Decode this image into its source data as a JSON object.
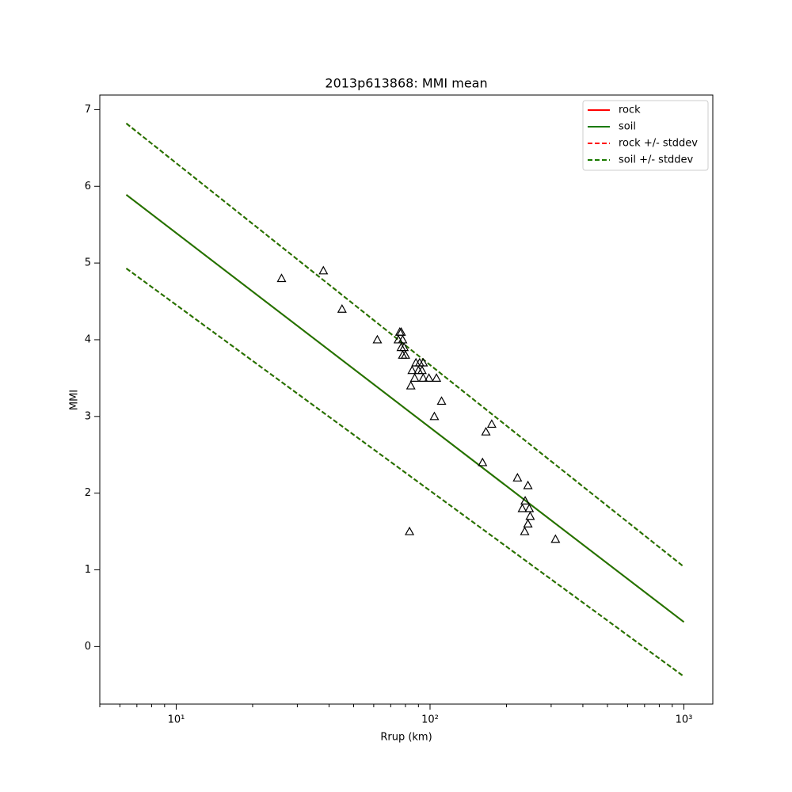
{
  "chart_data": {
    "type": "line",
    "title": "2013p613868: MMI mean",
    "xlabel": "Rrup (km)",
    "ylabel": "MMI",
    "xscale": "log",
    "xlim": [
      5,
      1300
    ],
    "ylim": [
      -0.75,
      7.19
    ],
    "xticks": [
      {
        "value": 10,
        "label": "10¹"
      },
      {
        "value": 100,
        "label": "10²"
      },
      {
        "value": 1000,
        "label": "10³"
      }
    ],
    "xminorticks": [
      5,
      6,
      7,
      8,
      9,
      20,
      30,
      40,
      50,
      60,
      70,
      80,
      90,
      200,
      300,
      400,
      500,
      600,
      700,
      800,
      900
    ],
    "yticks": [
      0,
      1,
      2,
      3,
      4,
      5,
      6,
      7
    ],
    "legend": "upper right",
    "series": [
      {
        "name": "rock",
        "color": "#ff0000",
        "linestyle": "solid",
        "x": [
          6.36,
          1000
        ],
        "values": [
          5.89,
          0.32
        ]
      },
      {
        "name": "soil",
        "color": "#1a7a00",
        "linestyle": "solid",
        "x": [
          6.36,
          1000
        ],
        "values": [
          5.89,
          0.32
        ]
      },
      {
        "name": "rock +/- stddev",
        "color": "#ff0000",
        "linestyle": "dashed",
        "x": [
          6.36,
          1000,
          null,
          6.36,
          1000
        ],
        "values": [
          6.82,
          1.04,
          null,
          4.93,
          -0.39
        ]
      },
      {
        "name": "soil +/- stddev",
        "color": "#1a7a00",
        "linestyle": "dashed",
        "x": [
          6.36,
          1000,
          null,
          6.36,
          1000
        ],
        "values": [
          6.82,
          1.04,
          null,
          4.93,
          -0.39
        ]
      }
    ],
    "points": {
      "color": "#000000",
      "x": [
        26,
        38,
        45,
        62,
        76,
        77,
        75,
        78,
        77,
        79,
        78,
        80,
        88,
        91,
        94,
        90,
        93,
        85,
        87,
        94,
        99,
        106,
        84,
        111,
        104,
        175,
        166,
        161,
        221,
        243,
        237,
        246,
        231,
        248,
        243,
        236,
        312,
        83
      ],
      "values": [
        4.8,
        4.9,
        4.4,
        4.0,
        4.1,
        4.1,
        4.0,
        4.0,
        3.9,
        3.9,
        3.8,
        3.8,
        3.7,
        3.7,
        3.7,
        3.6,
        3.6,
        3.6,
        3.5,
        3.5,
        3.5,
        3.5,
        3.4,
        3.2,
        3.0,
        2.9,
        2.8,
        2.4,
        2.2,
        2.1,
        1.9,
        1.8,
        1.8,
        1.7,
        1.6,
        1.5,
        1.4,
        1.5
      ]
    }
  }
}
